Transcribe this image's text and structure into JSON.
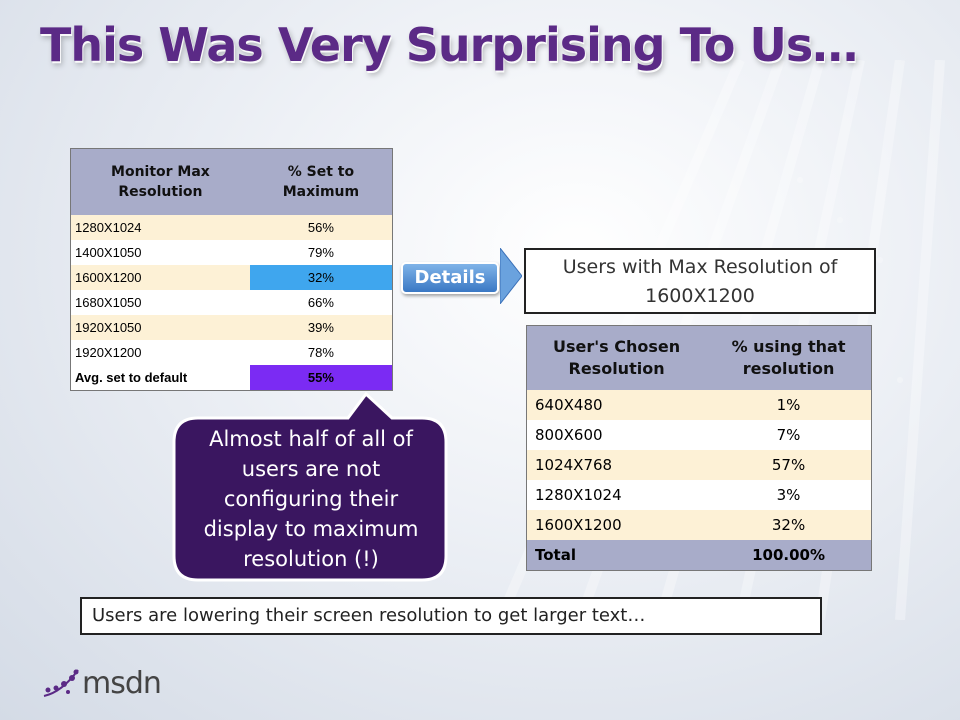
{
  "slide": {
    "title": "This Was Very Surprising To Us…"
  },
  "table_max": {
    "headers": [
      "Monitor Max Resolution",
      "% Set to Maximum"
    ],
    "rows": [
      {
        "res": "1280X1024",
        "pct": "56%"
      },
      {
        "res": "1400X1050",
        "pct": "79%"
      },
      {
        "res": "1600X1200",
        "pct": "32%"
      },
      {
        "res": "1680X1050",
        "pct": "66%"
      },
      {
        "res": "1920X1050",
        "pct": "39%"
      },
      {
        "res": "1920X1200",
        "pct": "78%"
      }
    ],
    "avg_label": "Avg. set to default",
    "avg_value": "55%",
    "colors": {
      "highlight_blue": "#3fa6ee",
      "highlight_purple": "#7b2bf3",
      "header": "#a8acc9",
      "band": "#fdf1d6"
    }
  },
  "details_button": {
    "label": "Details"
  },
  "info_box": {
    "text": "Users with Max Resolution of 1600X1200"
  },
  "table_chosen": {
    "headers": [
      "User's Chosen Resolution",
      "% using that resolution"
    ],
    "rows": [
      {
        "res": "640X480",
        "pct": "1%"
      },
      {
        "res": "800X600",
        "pct": "7%"
      },
      {
        "res": "1024X768",
        "pct": "57%"
      },
      {
        "res": "1280X1024",
        "pct": "3%"
      },
      {
        "res": "1600X1200",
        "pct": "32%"
      }
    ],
    "total_label": "Total",
    "total_value": "100.00%"
  },
  "callout": {
    "text": "Almost half of all of users are not configuring their display to maximum resolution (!)",
    "color": "#3a1660"
  },
  "bottom_note": {
    "text": "Users are lowering their screen resolution to get larger text…"
  },
  "logo": {
    "text": "msdn"
  }
}
